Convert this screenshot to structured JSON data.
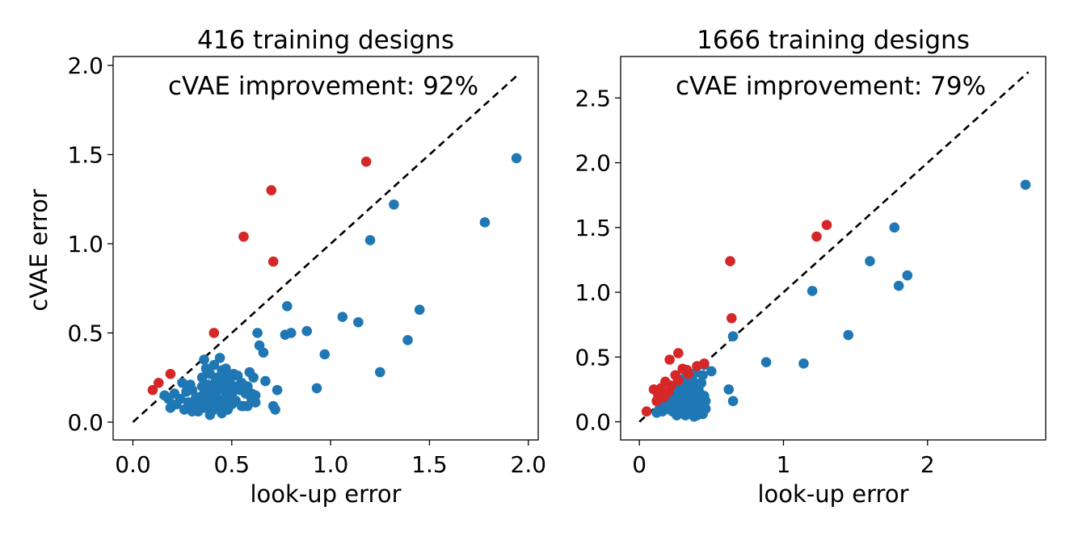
{
  "chart_data": [
    {
      "type": "scatter",
      "title": "416 training designs",
      "xlabel": "look-up error",
      "ylabel": "cVAE error",
      "annotation": "cVAE improvement: 92%",
      "xlim": [
        -0.1,
        2.05
      ],
      "ylim": [
        -0.1,
        2.05
      ],
      "xticks": [
        0.0,
        0.5,
        1.0,
        1.5,
        2.0
      ],
      "xtick_labels": [
        "0.0",
        "0.5",
        "1.0",
        "1.5",
        "2.0"
      ],
      "yticks": [
        0.0,
        0.5,
        1.0,
        1.5,
        2.0
      ],
      "ytick_labels": [
        "0.0",
        "0.5",
        "1.0",
        "1.5",
        "2.0"
      ],
      "diagonal": [
        0,
        1.95
      ],
      "colors": {
        "improved": "#1f77b4",
        "worse": "#d62728"
      },
      "series": [
        {
          "name": "improved",
          "color": "#1f77b4",
          "points": [
            [
              1.94,
              1.48
            ],
            [
              1.78,
              1.12
            ],
            [
              1.32,
              1.22
            ],
            [
              1.2,
              1.02
            ],
            [
              1.45,
              0.63
            ],
            [
              1.39,
              0.46
            ],
            [
              1.25,
              0.28
            ],
            [
              1.14,
              0.56
            ],
            [
              1.06,
              0.59
            ],
            [
              0.97,
              0.38
            ],
            [
              0.93,
              0.19
            ],
            [
              0.78,
              0.65
            ],
            [
              0.77,
              0.49
            ],
            [
              0.8,
              0.5
            ],
            [
              0.88,
              0.51
            ],
            [
              0.63,
              0.5
            ],
            [
              0.64,
              0.43
            ],
            [
              0.66,
              0.39
            ],
            [
              0.67,
              0.23
            ],
            [
              0.72,
              0.07
            ],
            [
              0.73,
              0.18
            ],
            [
              0.71,
              0.09
            ],
            [
              0.62,
              0.11
            ],
            [
              0.6,
              0.16
            ],
            [
              0.58,
              0.2
            ],
            [
              0.56,
              0.09
            ],
            [
              0.55,
              0.22
            ],
            [
              0.5,
              0.1
            ],
            [
              0.46,
              0.18
            ],
            [
              0.44,
              0.12
            ],
            [
              0.42,
              0.24
            ],
            [
              0.4,
              0.16
            ],
            [
              0.38,
              0.1
            ],
            [
              0.36,
              0.35
            ],
            [
              0.35,
              0.2
            ],
            [
              0.34,
              0.14
            ],
            [
              0.32,
              0.08
            ],
            [
              0.3,
              0.18
            ],
            [
              0.28,
              0.11
            ],
            [
              0.26,
              0.07
            ],
            [
              0.25,
              0.22
            ],
            [
              0.24,
              0.13
            ],
            [
              0.22,
              0.1
            ],
            [
              0.21,
              0.16
            ],
            [
              0.19,
              0.08
            ],
            [
              0.18,
              0.13
            ],
            [
              0.16,
              0.15
            ],
            [
              0.35,
              0.25
            ],
            [
              0.37,
              0.3
            ],
            [
              0.39,
              0.27
            ],
            [
              0.41,
              0.32
            ],
            [
              0.43,
              0.25
            ],
            [
              0.45,
              0.29
            ],
            [
              0.47,
              0.3
            ],
            [
              0.49,
              0.22
            ],
            [
              0.51,
              0.27
            ],
            [
              0.53,
              0.26
            ],
            [
              0.55,
              0.09
            ],
            [
              0.33,
              0.06
            ],
            [
              0.31,
              0.12
            ],
            [
              0.29,
              0.21
            ],
            [
              0.27,
              0.17
            ],
            [
              0.39,
              0.04
            ],
            [
              0.41,
              0.07
            ],
            [
              0.43,
              0.09
            ],
            [
              0.45,
              0.05
            ],
            [
              0.47,
              0.14
            ],
            [
              0.49,
              0.24
            ],
            [
              0.52,
              0.12
            ],
            [
              0.54,
              0.18
            ],
            [
              0.57,
              0.16
            ],
            [
              0.59,
              0.28
            ],
            [
              0.61,
              0.25
            ],
            [
              0.36,
              0.16
            ],
            [
              0.38,
              0.21
            ],
            [
              0.4,
              0.18
            ],
            [
              0.42,
              0.2
            ],
            [
              0.44,
              0.36
            ],
            [
              0.46,
              0.22
            ],
            [
              0.48,
              0.26
            ],
            [
              0.5,
              0.19
            ],
            [
              0.3,
              0.06
            ],
            [
              0.32,
              0.14
            ],
            [
              0.34,
              0.1
            ],
            [
              0.36,
              0.08
            ],
            [
              0.38,
              0.13
            ],
            [
              0.4,
              0.11
            ],
            [
              0.42,
              0.15
            ],
            [
              0.44,
              0.19
            ],
            [
              0.46,
              0.1
            ],
            [
              0.48,
              0.07
            ],
            [
              0.5,
              0.15
            ],
            [
              0.52,
              0.2
            ],
            [
              0.58,
              0.09
            ],
            [
              0.6,
              0.13
            ],
            [
              0.62,
              0.15
            ]
          ]
        },
        {
          "name": "worse",
          "color": "#d62728",
          "points": [
            [
              1.18,
              1.46
            ],
            [
              0.7,
              1.3
            ],
            [
              0.56,
              1.04
            ],
            [
              0.71,
              0.9
            ],
            [
              0.41,
              0.5
            ],
            [
              0.19,
              0.27
            ],
            [
              0.13,
              0.22
            ],
            [
              0.1,
              0.18
            ]
          ]
        }
      ]
    },
    {
      "type": "scatter",
      "title": "1666 training designs",
      "xlabel": "look-up error",
      "ylabel": "",
      "annotation": "cVAE improvement: 79%",
      "xlim": [
        -0.13,
        2.82
      ],
      "ylim": [
        -0.14,
        2.82
      ],
      "xticks": [
        0,
        1,
        2
      ],
      "xtick_labels": [
        "0",
        "1",
        "2"
      ],
      "yticks": [
        0.0,
        0.5,
        1.0,
        1.5,
        2.0,
        2.5
      ],
      "ytick_labels": [
        "0.0",
        "0.5",
        "1.0",
        "1.5",
        "2.0",
        "2.5"
      ],
      "diagonal": [
        0,
        2.7
      ],
      "colors": {
        "improved": "#1f77b4",
        "worse": "#d62728"
      },
      "series": [
        {
          "name": "improved",
          "color": "#1f77b4",
          "points": [
            [
              2.68,
              1.83
            ],
            [
              1.77,
              1.5
            ],
            [
              1.6,
              1.24
            ],
            [
              1.86,
              1.13
            ],
            [
              1.8,
              1.05
            ],
            [
              1.2,
              1.01
            ],
            [
              1.45,
              0.67
            ],
            [
              1.14,
              0.45
            ],
            [
              0.88,
              0.46
            ],
            [
              0.65,
              0.66
            ],
            [
              0.62,
              0.25
            ],
            [
              0.65,
              0.16
            ],
            [
              0.5,
              0.39
            ],
            [
              0.45,
              0.44
            ],
            [
              0.44,
              0.36
            ],
            [
              0.43,
              0.3
            ],
            [
              0.42,
              0.22
            ],
            [
              0.41,
              0.12
            ],
            [
              0.4,
              0.2
            ],
            [
              0.39,
              0.28
            ],
            [
              0.38,
              0.15
            ],
            [
              0.37,
              0.1
            ],
            [
              0.36,
              0.24
            ],
            [
              0.35,
              0.18
            ],
            [
              0.34,
              0.08
            ],
            [
              0.33,
              0.3
            ],
            [
              0.32,
              0.14
            ],
            [
              0.31,
              0.2
            ],
            [
              0.3,
              0.1
            ],
            [
              0.29,
              0.26
            ],
            [
              0.28,
              0.16
            ],
            [
              0.27,
              0.06
            ],
            [
              0.26,
              0.22
            ],
            [
              0.25,
              0.12
            ],
            [
              0.24,
              0.18
            ],
            [
              0.23,
              0.08
            ],
            [
              0.22,
              0.14
            ],
            [
              0.21,
              0.2
            ],
            [
              0.2,
              0.1
            ],
            [
              0.18,
              0.16
            ],
            [
              0.17,
              0.12
            ],
            [
              0.16,
              0.08
            ],
            [
              0.14,
              0.1
            ],
            [
              0.12,
              0.07
            ],
            [
              0.33,
              0.35
            ],
            [
              0.35,
              0.28
            ],
            [
              0.37,
              0.32
            ],
            [
              0.39,
              0.38
            ],
            [
              0.41,
              0.26
            ],
            [
              0.43,
              0.16
            ],
            [
              0.45,
              0.2
            ],
            [
              0.46,
              0.1
            ],
            [
              0.44,
              0.06
            ],
            [
              0.42,
              0.08
            ],
            [
              0.4,
              0.05
            ],
            [
              0.38,
              0.04
            ],
            [
              0.36,
              0.06
            ],
            [
              0.34,
              0.13
            ],
            [
              0.32,
              0.05
            ],
            [
              0.3,
              0.17
            ],
            [
              0.28,
              0.22
            ],
            [
              0.26,
              0.15
            ],
            [
              0.24,
              0.27
            ],
            [
              0.22,
              0.24
            ],
            [
              0.2,
              0.19
            ],
            [
              0.19,
              0.14
            ],
            [
              0.3,
              0.33
            ],
            [
              0.32,
              0.25
            ],
            [
              0.34,
              0.2
            ],
            [
              0.36,
              0.15
            ],
            [
              0.38,
              0.09
            ],
            [
              0.4,
              0.16
            ],
            [
              0.42,
              0.18
            ],
            [
              0.44,
              0.12
            ],
            [
              0.46,
              0.16
            ],
            [
              0.28,
              0.09
            ],
            [
              0.26,
              0.05
            ],
            [
              0.24,
              0.11
            ],
            [
              0.35,
              0.12
            ],
            [
              0.33,
              0.09
            ],
            [
              0.31,
              0.27
            ]
          ]
        },
        {
          "name": "worse",
          "color": "#d62728",
          "points": [
            [
              1.3,
              1.52
            ],
            [
              1.23,
              1.43
            ],
            [
              0.63,
              1.24
            ],
            [
              0.64,
              0.8
            ],
            [
              0.27,
              0.53
            ],
            [
              0.21,
              0.48
            ],
            [
              0.45,
              0.45
            ],
            [
              0.4,
              0.43
            ],
            [
              0.3,
              0.41
            ],
            [
              0.25,
              0.36
            ],
            [
              0.34,
              0.37
            ],
            [
              0.18,
              0.31
            ],
            [
              0.22,
              0.28
            ],
            [
              0.15,
              0.26
            ],
            [
              0.13,
              0.21
            ],
            [
              0.1,
              0.25
            ],
            [
              0.2,
              0.23
            ],
            [
              0.27,
              0.32
            ],
            [
              0.17,
              0.19
            ],
            [
              0.05,
              0.08
            ],
            [
              0.33,
              0.4
            ],
            [
              0.12,
              0.16
            ]
          ]
        }
      ]
    }
  ]
}
